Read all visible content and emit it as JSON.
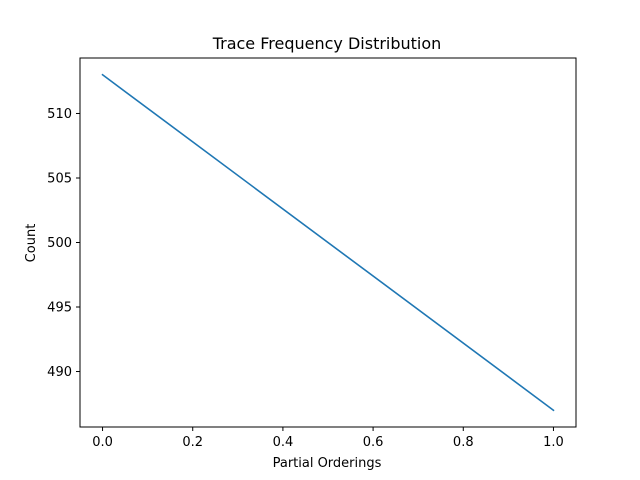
{
  "chart_data": {
    "type": "line",
    "title": "Trace Frequency Distribution",
    "xlabel": "Partial Orderings",
    "ylabel": "Count",
    "x": [
      0.0,
      1.0
    ],
    "series": [
      {
        "values": [
          513,
          487
        ],
        "color": "#1f77b4"
      }
    ],
    "xlim": [
      -0.05,
      1.05
    ],
    "ylim": [
      485.7,
      514.3
    ],
    "xticks": [
      0.0,
      0.2,
      0.4,
      0.6,
      0.8,
      1.0
    ],
    "xtick_labels": [
      "0.0",
      "0.2",
      "0.4",
      "0.6",
      "0.8",
      "1.0"
    ],
    "yticks": [
      490,
      495,
      500,
      505,
      510
    ],
    "ytick_labels": [
      "490",
      "495",
      "500",
      "505",
      "510"
    ],
    "grid": false,
    "legend": "none"
  }
}
